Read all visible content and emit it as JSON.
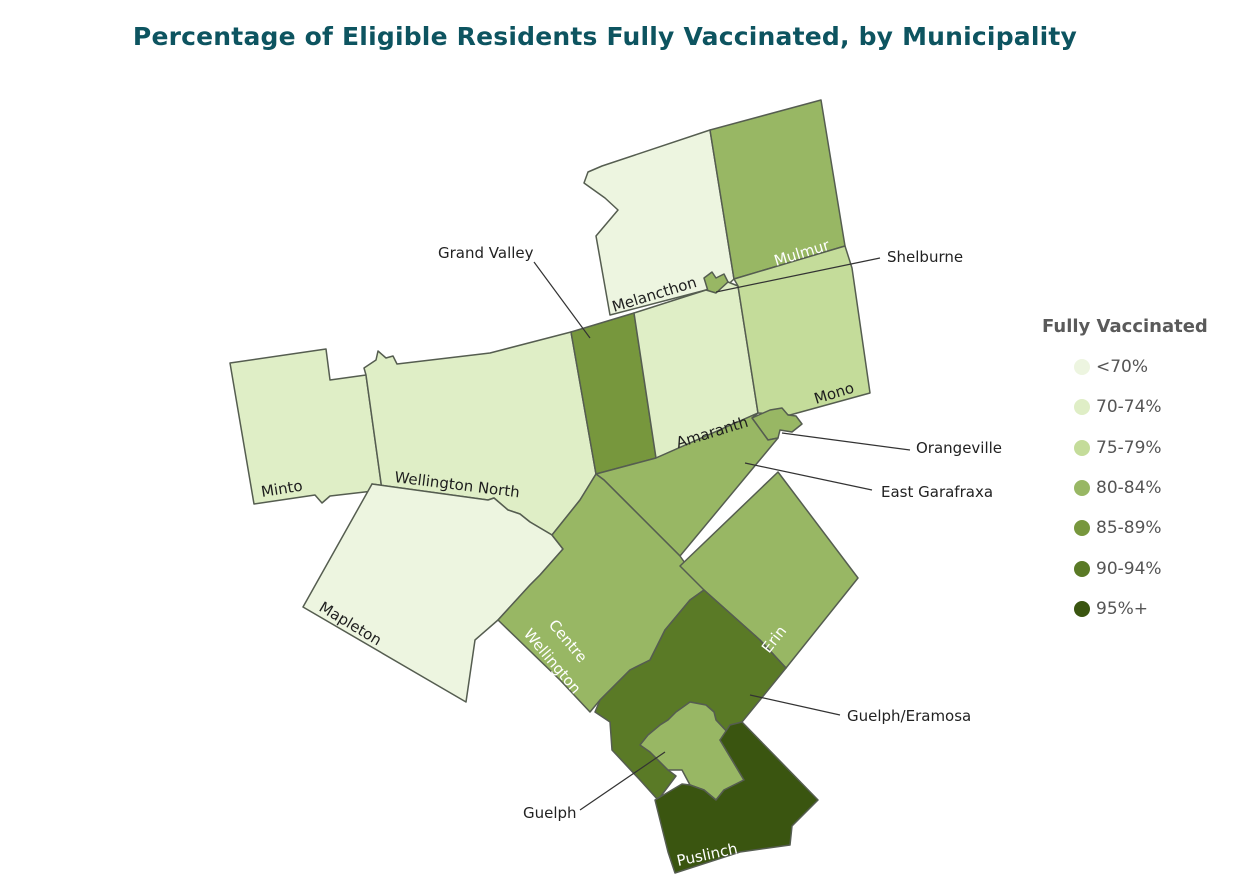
{
  "title": "Percentage of Eligible Residents Fully Vaccinated, by Municipality",
  "legend": {
    "title": "Fully Vaccinated",
    "classes": [
      {
        "label": "<70%",
        "color": "#edf5e0"
      },
      {
        "label": "70-74%",
        "color": "#dfeec6"
      },
      {
        "label": "75-79%",
        "color": "#c4dc9a"
      },
      {
        "label": "80-84%",
        "color": "#98b764"
      },
      {
        "label": "85-89%",
        "color": "#77973d"
      },
      {
        "label": "90-94%",
        "color": "#5a7a26"
      },
      {
        "label": "95%+",
        "color": "#3a5510"
      }
    ]
  },
  "municipalities": {
    "minto": {
      "name": "Minto",
      "class": "70-74%"
    },
    "wellington_north": {
      "name": "Wellington North",
      "class": "70-74%"
    },
    "mapleton": {
      "name": "Mapleton",
      "class": "<70%"
    },
    "melancthon": {
      "name": "Melancthon",
      "class": "<70%"
    },
    "mulmur": {
      "name": "Mulmur",
      "class": "80-84%"
    },
    "shelburne": {
      "name": "Shelburne",
      "class": "80-84%"
    },
    "grand_valley": {
      "name": "Grand Valley",
      "class": "85-89%"
    },
    "amaranth": {
      "name": "Amaranth",
      "class": "70-74%"
    },
    "mono": {
      "name": "Mono",
      "class": "75-79%"
    },
    "orangeville": {
      "name": "Orangeville",
      "class": "80-84%"
    },
    "east_garafraxa": {
      "name": "East Garafraxa",
      "class": "80-84%"
    },
    "centre_wellington": {
      "name": "Centre Wellington",
      "name_line1": "Centre",
      "name_line2": "Wellington",
      "class": "80-84%"
    },
    "erin": {
      "name": "Erin",
      "class": "80-84%"
    },
    "guelph_eramosa": {
      "name": "Guelph/Eramosa",
      "class": "90-94%"
    },
    "guelph": {
      "name": "Guelph",
      "class": "80-84%"
    },
    "puslinch": {
      "name": "Puslinch",
      "class": "95%+"
    }
  }
}
